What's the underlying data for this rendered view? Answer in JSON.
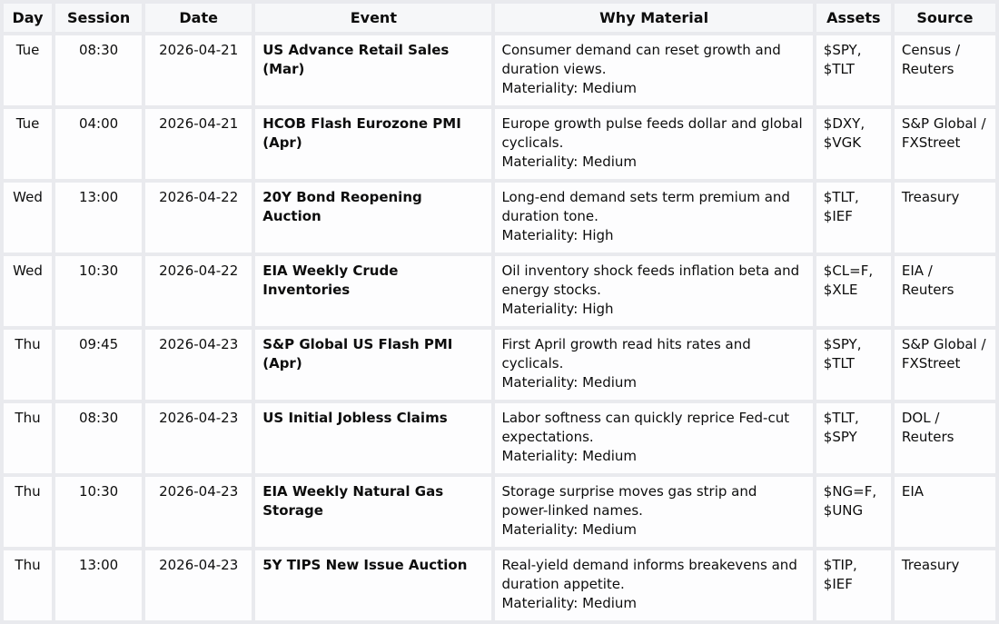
{
  "colors": {
    "page_background": "#e9eaee",
    "header_background": "#f6f7f9",
    "cell_background": "#fdfdfe",
    "text": "#0d0d0d"
  },
  "table": {
    "columns": {
      "day": "Day",
      "session": "Session",
      "date": "Date",
      "event": "Event",
      "why": "Why Material",
      "assets": "Assets",
      "source": "Source"
    },
    "rows": [
      {
        "day": "Tue",
        "session": "08:30",
        "date": "2026-04-21",
        "event": "US Advance Retail Sales (Mar)",
        "why": "Consumer demand can reset growth and duration views.",
        "materiality": "Materiality: Medium",
        "assets": "$SPY, $TLT",
        "source": "Census / Reuters"
      },
      {
        "day": "Tue",
        "session": "04:00",
        "date": "2026-04-21",
        "event": "HCOB Flash Eurozone PMI (Apr)",
        "why": "Europe growth pulse feeds dollar and global cyclicals.",
        "materiality": "Materiality: Medium",
        "assets": "$DXY, $VGK",
        "source": "S&P Global / FXStreet"
      },
      {
        "day": "Wed",
        "session": "13:00",
        "date": "2026-04-22",
        "event": "20Y Bond Reopening Auction",
        "why": "Long-end demand sets term premium and duration tone.",
        "materiality": "Materiality: High",
        "assets": "$TLT, $IEF",
        "source": "Treasury"
      },
      {
        "day": "Wed",
        "session": "10:30",
        "date": "2026-04-22",
        "event": "EIA Weekly Crude Inventories",
        "why": "Oil inventory shock feeds inflation beta and energy stocks.",
        "materiality": "Materiality: High",
        "assets": "$CL=F, $XLE",
        "source": "EIA / Reuters"
      },
      {
        "day": "Thu",
        "session": "09:45",
        "date": "2026-04-23",
        "event": "S&P Global US Flash PMI (Apr)",
        "why": "First April growth read hits rates and cyclicals.",
        "materiality": "Materiality: Medium",
        "assets": "$SPY, $TLT",
        "source": "S&P Global / FXStreet"
      },
      {
        "day": "Thu",
        "session": "08:30",
        "date": "2026-04-23",
        "event": "US Initial Jobless Claims",
        "why": "Labor softness can quickly reprice Fed-cut expectations.",
        "materiality": "Materiality: Medium",
        "assets": "$TLT, $SPY",
        "source": "DOL / Reuters"
      },
      {
        "day": "Thu",
        "session": "10:30",
        "date": "2026-04-23",
        "event": "EIA Weekly Natural Gas Storage",
        "why": "Storage surprise moves gas strip and power-linked names.",
        "materiality": "Materiality: Medium",
        "assets": "$NG=F, $UNG",
        "source": "EIA"
      },
      {
        "day": "Thu",
        "session": "13:00",
        "date": "2026-04-23",
        "event": "5Y TIPS New Issue Auction",
        "why": "Real-yield demand informs breakevens and duration appetite.",
        "materiality": "Materiality: Medium",
        "assets": "$TIP, $IEF",
        "source": "Treasury"
      }
    ]
  }
}
